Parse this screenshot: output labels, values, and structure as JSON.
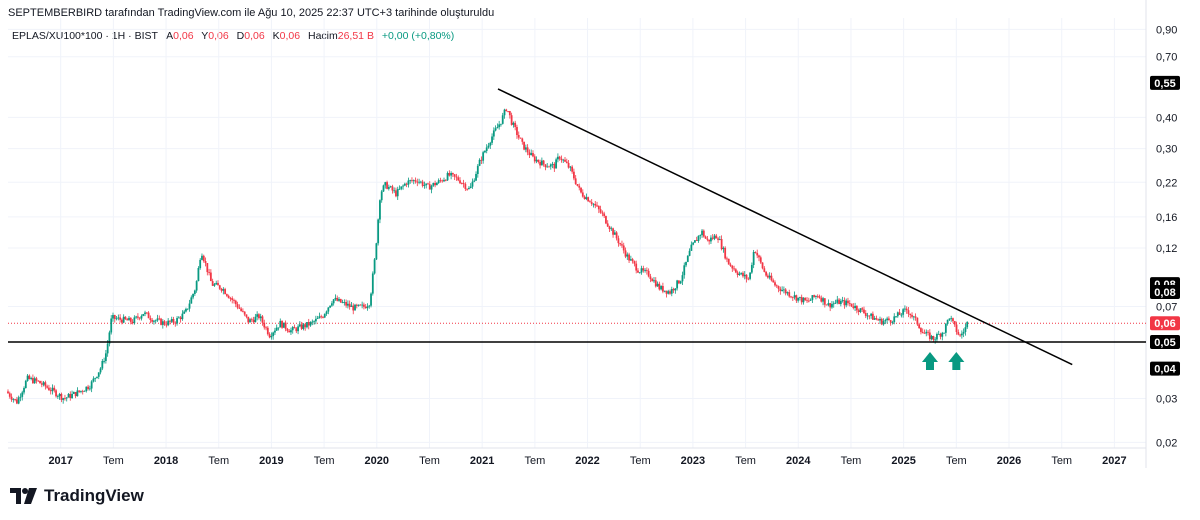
{
  "header": {
    "attribution": "SEPTEMBERBIRD tarafından TradingView.com ile Ağu 10, 2025 22:37 UTC+3 tarihinde oluşturuldu"
  },
  "legend": {
    "symbol": "EPLAS/XU100*100 · 1H · BIST",
    "open_label": "A",
    "open": "0,06",
    "high_label": "Y",
    "high": "0,06",
    "low_label": "D",
    "low": "0,06",
    "close_label": "K",
    "close": "0,06",
    "volume_label": "Hacim",
    "volume": "26,51 B",
    "change": "+0,00 (+0,80%)"
  },
  "brand": {
    "name": "TradingView"
  },
  "colors": {
    "up": "#089981",
    "down": "#f23645",
    "line": "#000000",
    "grid": "#f0f3fa",
    "arrow": "#089981"
  },
  "chart_data": {
    "type": "candlestick",
    "y_scale": "log",
    "ylim": [
      0.019,
      1.0
    ],
    "y_ticks": [
      {
        "v": 0.9,
        "label": "0,90"
      },
      {
        "v": 0.7,
        "label": "0,70"
      },
      {
        "v": 0.4,
        "label": "0,40"
      },
      {
        "v": 0.3,
        "label": "0,30"
      },
      {
        "v": 0.22,
        "label": "0,22"
      },
      {
        "v": 0.16,
        "label": "0,16"
      },
      {
        "v": 0.12,
        "label": "0,12"
      },
      {
        "v": 0.07,
        "label": "0,07"
      },
      {
        "v": 0.03,
        "label": "0,03"
      },
      {
        "v": 0.02,
        "label": "0,02"
      }
    ],
    "price_badges": [
      {
        "v": 0.55,
        "label": "0,55",
        "style": "black"
      },
      {
        "v": 0.086,
        "label": "0,08",
        "style": "black"
      },
      {
        "v": 0.08,
        "label": "0,08",
        "style": "black"
      },
      {
        "v": 0.06,
        "label": "0,06",
        "style": "red"
      },
      {
        "v": 0.0505,
        "label": "0,05",
        "style": "black"
      },
      {
        "v": 0.0395,
        "label": "0,04",
        "style": "black"
      }
    ],
    "x_range": [
      2016.5,
      2027.3
    ],
    "x_ticks": [
      {
        "t": 2017.0,
        "label": "2017",
        "major": true
      },
      {
        "t": 2017.5,
        "label": "Tem",
        "major": false
      },
      {
        "t": 2018.0,
        "label": "2018",
        "major": true
      },
      {
        "t": 2018.5,
        "label": "Tem",
        "major": false
      },
      {
        "t": 2019.0,
        "label": "2019",
        "major": true
      },
      {
        "t": 2019.5,
        "label": "Tem",
        "major": false
      },
      {
        "t": 2020.0,
        "label": "2020",
        "major": true
      },
      {
        "t": 2020.5,
        "label": "Tem",
        "major": false
      },
      {
        "t": 2021.0,
        "label": "2021",
        "major": true
      },
      {
        "t": 2021.5,
        "label": "Tem",
        "major": false
      },
      {
        "t": 2022.0,
        "label": "2022",
        "major": true
      },
      {
        "t": 2022.5,
        "label": "Tem",
        "major": false
      },
      {
        "t": 2023.0,
        "label": "2023",
        "major": true
      },
      {
        "t": 2023.5,
        "label": "Tem",
        "major": false
      },
      {
        "t": 2024.0,
        "label": "2024",
        "major": true
      },
      {
        "t": 2024.5,
        "label": "Tem",
        "major": false
      },
      {
        "t": 2025.0,
        "label": "2025",
        "major": true
      },
      {
        "t": 2025.5,
        "label": "Tem",
        "major": false
      },
      {
        "t": 2026.0,
        "label": "2026",
        "major": true
      },
      {
        "t": 2026.5,
        "label": "Tem",
        "major": false
      },
      {
        "t": 2027.0,
        "label": "2027",
        "major": true
      }
    ],
    "series": [
      {
        "name": "EPLAS/XU100*100",
        "points": [
          [
            2016.5,
            0.032
          ],
          [
            2016.6,
            0.029
          ],
          [
            2016.7,
            0.036
          ],
          [
            2016.8,
            0.035
          ],
          [
            2016.9,
            0.033
          ],
          [
            2017.05,
            0.03
          ],
          [
            2017.2,
            0.032
          ],
          [
            2017.3,
            0.034
          ],
          [
            2017.4,
            0.04
          ],
          [
            2017.45,
            0.046
          ],
          [
            2017.5,
            0.063
          ],
          [
            2017.6,
            0.062
          ],
          [
            2017.7,
            0.061
          ],
          [
            2017.8,
            0.066
          ],
          [
            2017.9,
            0.062
          ],
          [
            2018.0,
            0.06
          ],
          [
            2018.1,
            0.061
          ],
          [
            2018.2,
            0.066
          ],
          [
            2018.3,
            0.084
          ],
          [
            2018.35,
            0.118
          ],
          [
            2018.45,
            0.086
          ],
          [
            2018.55,
            0.083
          ],
          [
            2018.7,
            0.07
          ],
          [
            2018.8,
            0.061
          ],
          [
            2018.9,
            0.064
          ],
          [
            2019.0,
            0.054
          ],
          [
            2019.1,
            0.06
          ],
          [
            2019.2,
            0.056
          ],
          [
            2019.3,
            0.058
          ],
          [
            2019.4,
            0.06
          ],
          [
            2019.5,
            0.064
          ],
          [
            2019.6,
            0.075
          ],
          [
            2019.7,
            0.072
          ],
          [
            2019.8,
            0.069
          ],
          [
            2019.9,
            0.07
          ],
          [
            2019.95,
            0.073
          ],
          [
            2020.0,
            0.11
          ],
          [
            2020.05,
            0.2
          ],
          [
            2020.1,
            0.215
          ],
          [
            2020.2,
            0.198
          ],
          [
            2020.3,
            0.22
          ],
          [
            2020.4,
            0.225
          ],
          [
            2020.5,
            0.21
          ],
          [
            2020.6,
            0.22
          ],
          [
            2020.7,
            0.235
          ],
          [
            2020.8,
            0.225
          ],
          [
            2020.9,
            0.205
          ],
          [
            2021.0,
            0.27
          ],
          [
            2021.1,
            0.33
          ],
          [
            2021.2,
            0.39
          ],
          [
            2021.25,
            0.44
          ],
          [
            2021.3,
            0.38
          ],
          [
            2021.4,
            0.31
          ],
          [
            2021.5,
            0.275
          ],
          [
            2021.6,
            0.26
          ],
          [
            2021.7,
            0.255
          ],
          [
            2021.75,
            0.28
          ],
          [
            2021.85,
            0.25
          ],
          [
            2021.95,
            0.2
          ],
          [
            2022.05,
            0.185
          ],
          [
            2022.15,
            0.165
          ],
          [
            2022.3,
            0.13
          ],
          [
            2022.4,
            0.11
          ],
          [
            2022.5,
            0.098
          ],
          [
            2022.6,
            0.094
          ],
          [
            2022.7,
            0.083
          ],
          [
            2022.8,
            0.08
          ],
          [
            2022.9,
            0.09
          ],
          [
            2023.0,
            0.12
          ],
          [
            2023.1,
            0.14
          ],
          [
            2023.15,
            0.128
          ],
          [
            2023.25,
            0.135
          ],
          [
            2023.35,
            0.105
          ],
          [
            2023.45,
            0.095
          ],
          [
            2023.55,
            0.09
          ],
          [
            2023.6,
            0.12
          ],
          [
            2023.7,
            0.095
          ],
          [
            2023.8,
            0.085
          ],
          [
            2023.9,
            0.08
          ],
          [
            2024.0,
            0.076
          ],
          [
            2024.1,
            0.073
          ],
          [
            2024.2,
            0.078
          ],
          [
            2024.3,
            0.071
          ],
          [
            2024.4,
            0.073
          ],
          [
            2024.5,
            0.072
          ],
          [
            2024.6,
            0.068
          ],
          [
            2024.7,
            0.064
          ],
          [
            2024.8,
            0.061
          ],
          [
            2024.9,
            0.062
          ],
          [
            2025.0,
            0.066
          ],
          [
            2025.05,
            0.068
          ],
          [
            2025.15,
            0.06
          ],
          [
            2025.2,
            0.055
          ],
          [
            2025.3,
            0.052
          ],
          [
            2025.4,
            0.056
          ],
          [
            2025.45,
            0.064
          ],
          [
            2025.5,
            0.058
          ],
          [
            2025.55,
            0.053
          ],
          [
            2025.6,
            0.057
          ],
          [
            2025.62,
            0.06
          ]
        ]
      }
    ],
    "trendline": [
      [
        2021.15,
        0.52
      ],
      [
        2026.6,
        0.041
      ]
    ],
    "support_level": 0.0505,
    "current_price": 0.06,
    "arrows": [
      {
        "t": 2025.25,
        "y": 0.042
      },
      {
        "t": 2025.5,
        "y": 0.042
      }
    ]
  }
}
